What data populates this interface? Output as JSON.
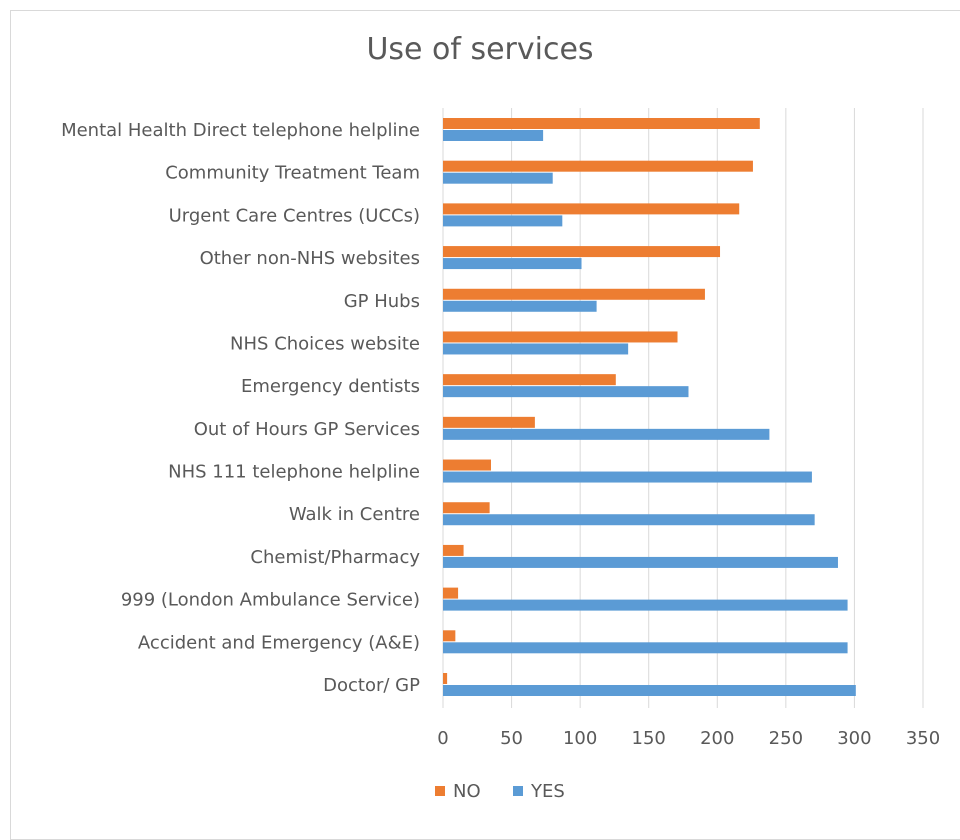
{
  "chart_data": {
    "type": "bar",
    "orientation": "horizontal",
    "title": "Use of services",
    "categories": [
      "Mental Health Direct telephone helpline",
      "Community Treatment Team",
      "Urgent Care Centres (UCCs)",
      "Other non-NHS websites",
      "GP Hubs",
      "NHS Choices website",
      "Emergency dentists",
      "Out of Hours GP Services",
      "NHS 111  telephone helpline",
      "Walk in Centre",
      "Chemist/Pharmacy",
      "999 (London Ambulance Service)",
      "Accident and Emergency (A&E)",
      "Doctor/ GP"
    ],
    "series": [
      {
        "name": "NO",
        "color": "#ed7d31",
        "values": [
          231,
          226,
          216,
          202,
          191,
          171,
          126,
          67,
          35,
          34,
          15,
          11,
          9,
          3
        ]
      },
      {
        "name": "YES",
        "color": "#5b9bd5",
        "values": [
          73,
          80,
          87,
          101,
          112,
          135,
          179,
          238,
          269,
          271,
          288,
          295,
          295,
          301
        ]
      }
    ],
    "xlim": [
      0,
      350
    ],
    "xticks": [
      0,
      50,
      100,
      150,
      200,
      250,
      300,
      350
    ],
    "grid": true,
    "legend": "bottom"
  }
}
